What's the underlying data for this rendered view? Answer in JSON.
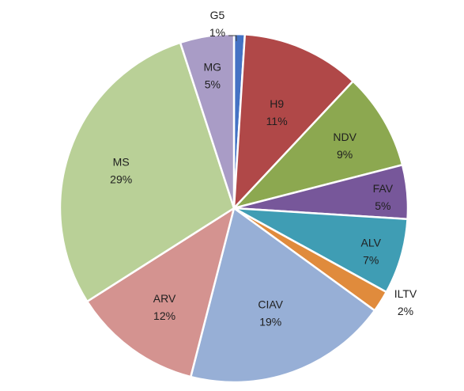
{
  "chart_data": {
    "type": "pie",
    "start": "12 o'clock",
    "direction": "clockwise",
    "title": "",
    "slices": [
      {
        "label": "G5",
        "value": 1,
        "display": "1%",
        "color": "#4472c4",
        "callout": true
      },
      {
        "label": "H9",
        "value": 11,
        "display": "11%",
        "color": "#b04848"
      },
      {
        "label": "NDV",
        "value": 9,
        "display": "9%",
        "color": "#8ca850"
      },
      {
        "label": "FAV",
        "value": 5,
        "display": "5%",
        "color": "#77579a"
      },
      {
        "label": "ALV",
        "value": 7,
        "display": "7%",
        "color": "#3f9db4"
      },
      {
        "label": "ILTV",
        "value": 2,
        "display": "2%",
        "color": "#e08b3c",
        "outside": true
      },
      {
        "label": "CIAV",
        "value": 19,
        "display": "19%",
        "color": "#97afd6"
      },
      {
        "label": "ARV",
        "value": 12,
        "display": "12%",
        "color": "#d49390"
      },
      {
        "label": "MS",
        "value": 29,
        "display": "29%",
        "color": "#b9d097"
      },
      {
        "label": "MG",
        "value": 5,
        "display": "5%",
        "color": "#a99cc6"
      }
    ]
  }
}
